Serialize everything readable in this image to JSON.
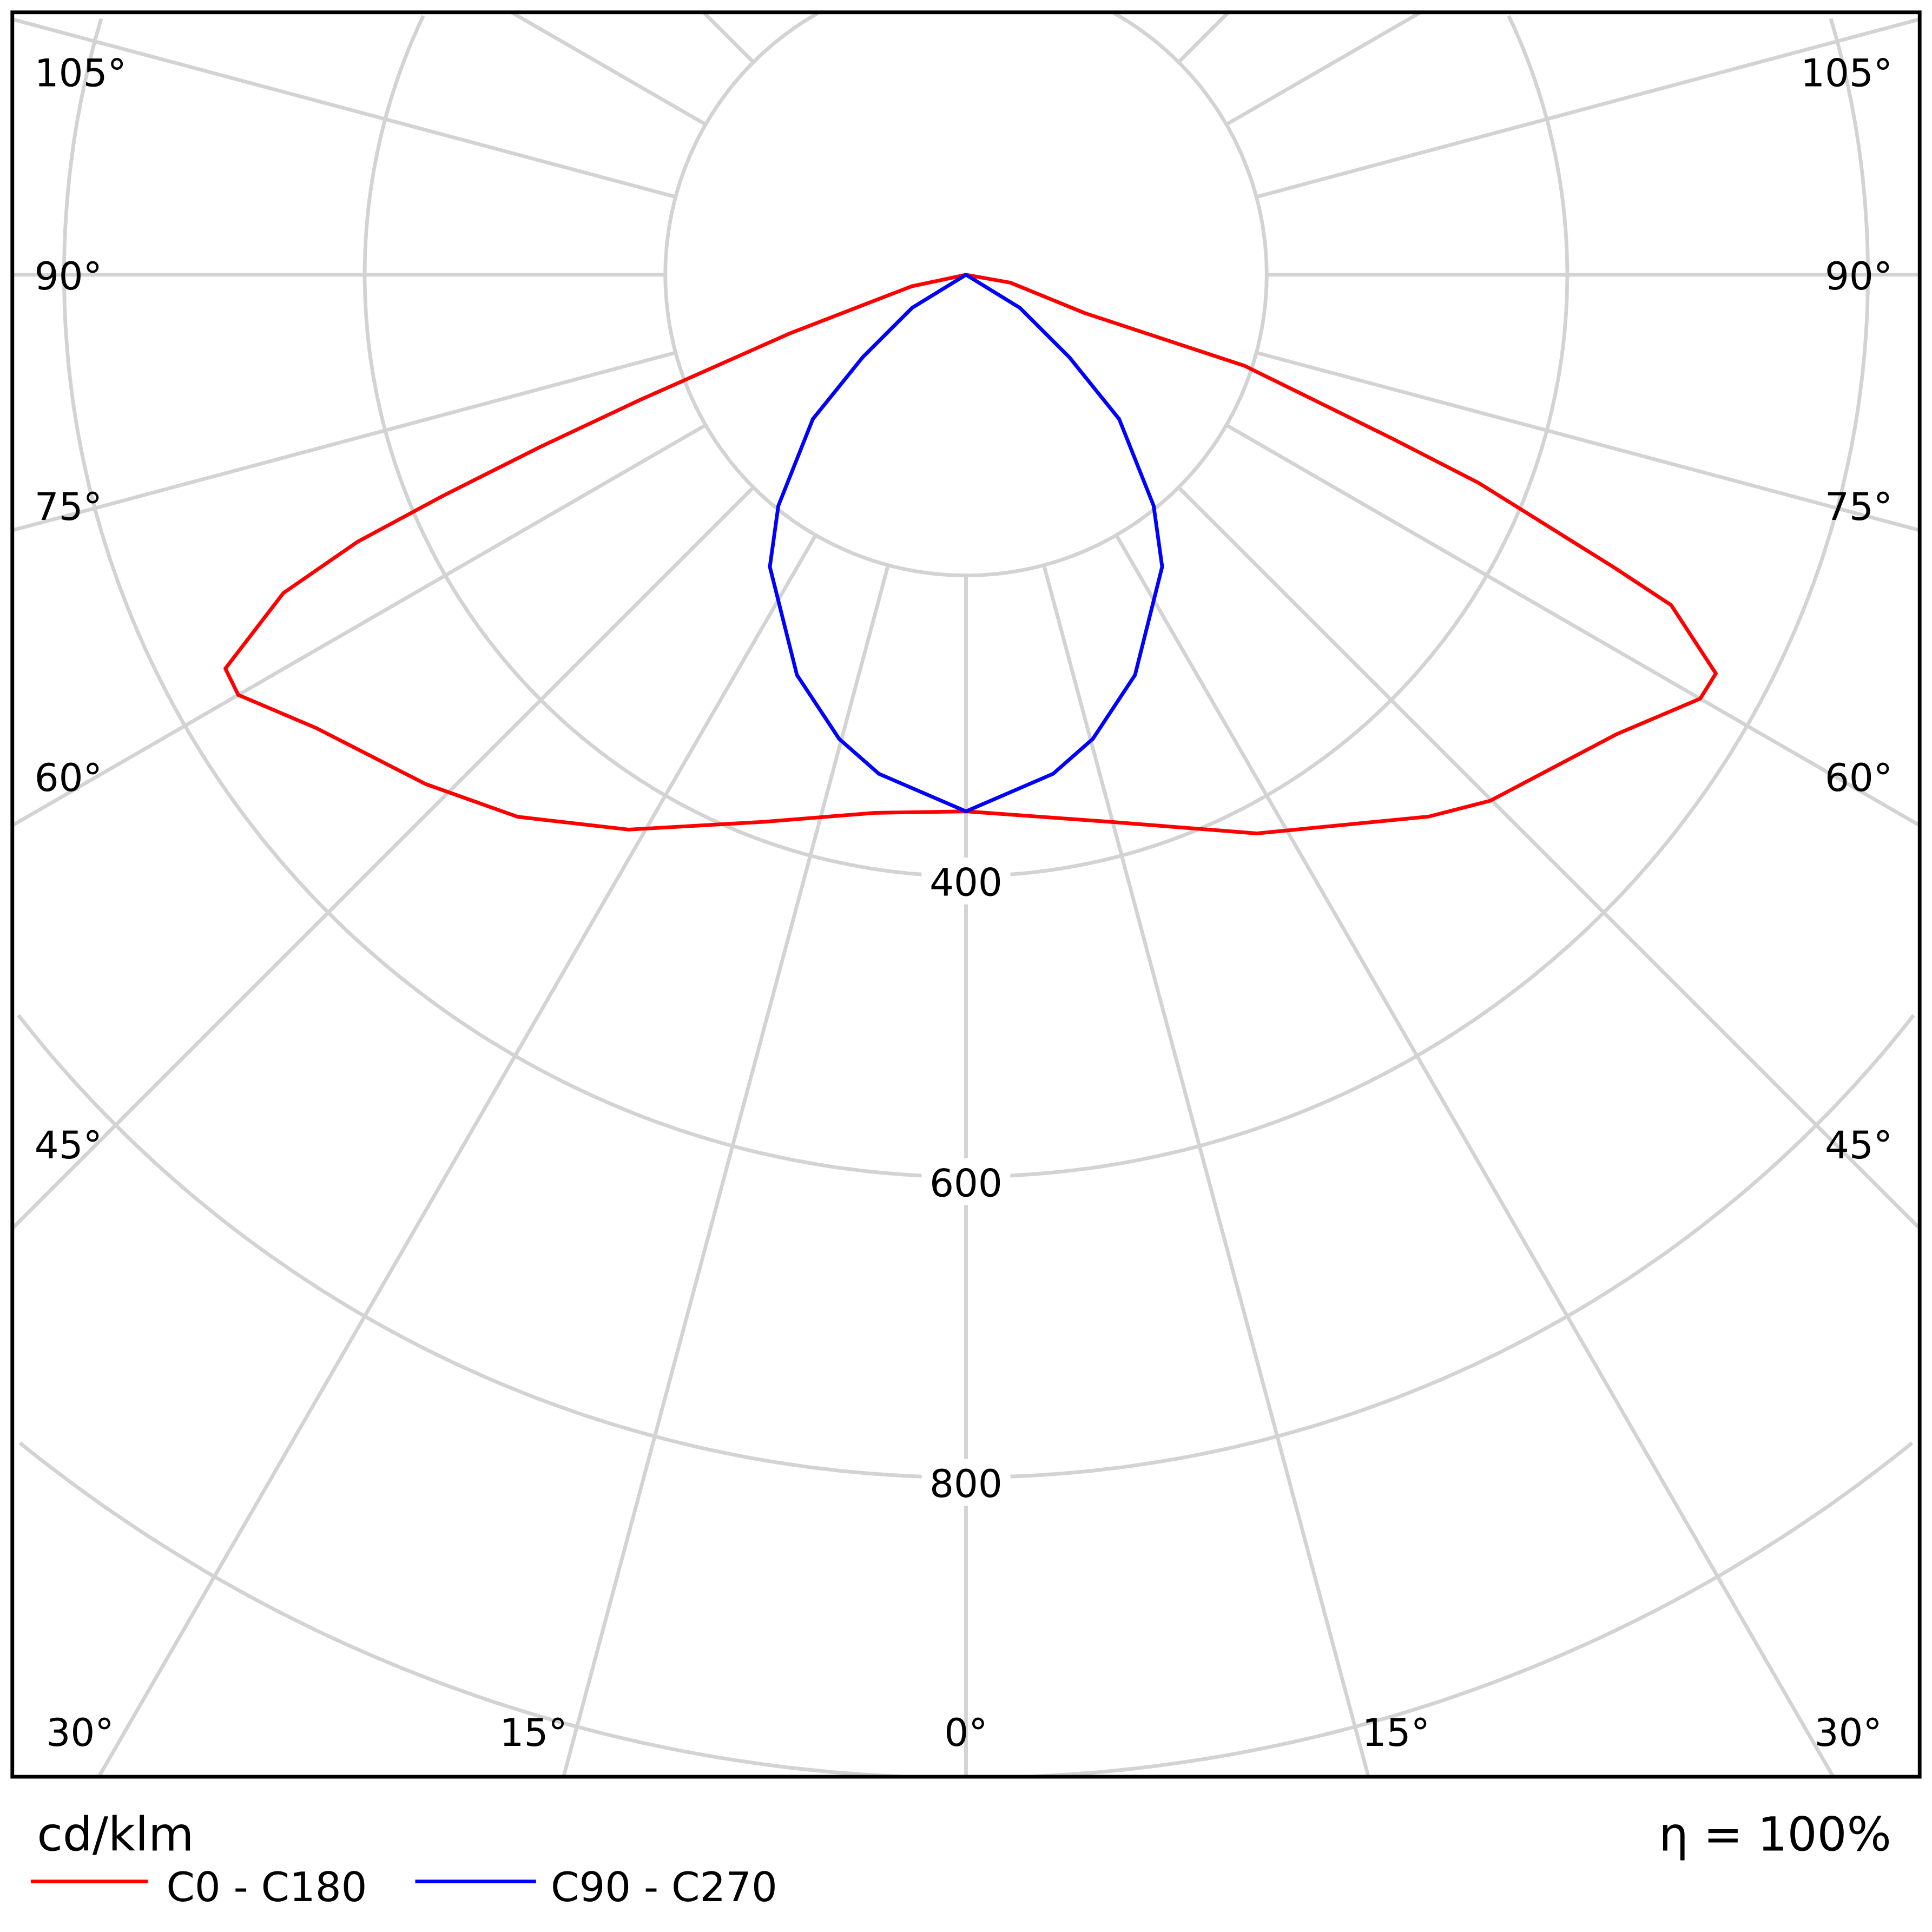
{
  "chart_data": {
    "type": "polar",
    "unit_label": "cd/klm",
    "efficiency_label": "η = 100%",
    "radial_ticks": [
      200,
      400,
      600,
      800,
      1000
    ],
    "radial_tick_labels": [
      "400",
      "600",
      "800"
    ],
    "angle_labels_side": [
      "105°",
      "90°",
      "75°",
      "60°",
      "45°"
    ],
    "angle_labels_bottom": [
      "30°",
      "15°",
      "0°",
      "15°",
      "30°"
    ],
    "grid": true,
    "series": [
      {
        "name": "C0 - C180",
        "color": "#ff0000",
        "left": [
          [
            0,
            357
          ],
          [
            9.6,
            363
          ],
          [
            20.3,
            388
          ],
          [
            31.3,
            432
          ],
          [
            39.6,
            468
          ],
          [
            46.7,
            494
          ],
          [
            55.1,
            527
          ],
          [
            60,
            559
          ],
          [
            62,
            558
          ],
          [
            65,
            501
          ],
          [
            66.3,
            442
          ],
          [
            67.1,
            377
          ],
          [
            68,
            304
          ],
          [
            69,
            232
          ],
          [
            71.6,
            124
          ],
          [
            78,
            37
          ],
          [
            90,
            0
          ]
        ],
        "right": [
          [
            0,
            357
          ],
          [
            14.6,
            376
          ],
          [
            27.5,
            419
          ],
          [
            40.5,
            474
          ],
          [
            44.9,
            494
          ],
          [
            54.8,
            530
          ],
          [
            60,
            564
          ],
          [
            62,
            565
          ],
          [
            64.9,
            518
          ],
          [
            65.7,
            473
          ],
          [
            67.9,
            368
          ],
          [
            69,
            303
          ],
          [
            71.9,
            195
          ],
          [
            72.1,
            83
          ],
          [
            80,
            30
          ],
          [
            90,
            0
          ]
        ]
      },
      {
        "name": "C90 - C270",
        "color": "#0000ff",
        "left": [
          [
            0,
            357
          ],
          [
            9.9,
            337
          ],
          [
            15.3,
            320
          ],
          [
            22.9,
            289
          ],
          [
            33.9,
            234
          ],
          [
            39.1,
            198
          ],
          [
            46.7,
            140
          ],
          [
            51.4,
            88
          ],
          [
            58.5,
            42
          ],
          [
            90,
            0
          ]
        ],
        "right": [
          [
            0,
            357
          ],
          [
            9.9,
            337
          ],
          [
            15.3,
            320
          ],
          [
            22.9,
            289
          ],
          [
            33.9,
            234
          ],
          [
            39.1,
            198
          ],
          [
            46.7,
            140
          ],
          [
            51.4,
            88
          ],
          [
            58.5,
            42
          ],
          [
            90,
            0
          ]
        ]
      }
    ]
  }
}
